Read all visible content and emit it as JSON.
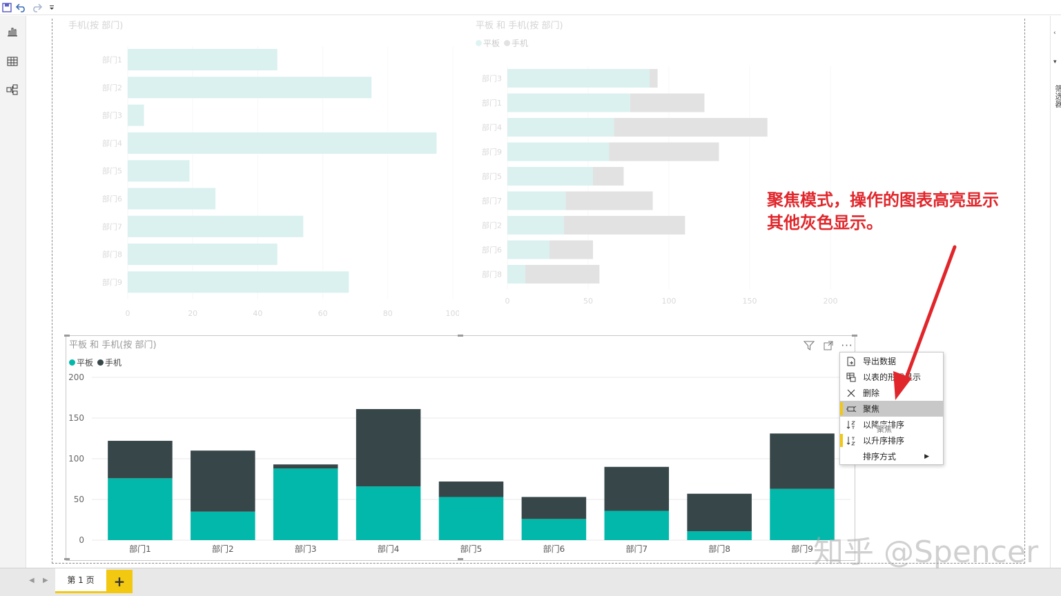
{
  "toolbar": {
    "icons": [
      "save-icon",
      "undo-icon",
      "redo-icon",
      "customize-dropdown-icon"
    ]
  },
  "left_rail": {
    "icons": [
      "report-view-icon",
      "data-view-icon",
      "relationship-view-icon"
    ]
  },
  "right_pane": {
    "label": "筛选器"
  },
  "page_tabs": {
    "current": "第 1 页",
    "add_label": "+"
  },
  "colors": {
    "teal": "#01b8aa",
    "dark": "#374649",
    "accent": "#f2c811",
    "annotation": "#e0262b"
  },
  "annotation": {
    "line1": "聚焦模式，操作的图表高亮显示",
    "line2": "其他灰色显示。"
  },
  "watermark": "知乎 @Spencer",
  "focused_visual": {
    "title": "平板 和 手机(按 部门)"
  },
  "context_menu": {
    "items": [
      {
        "label": "导出数据",
        "icon": "export-data-icon"
      },
      {
        "label": "以表的形式显示",
        "icon": "show-as-table-icon"
      },
      {
        "label": "删除",
        "icon": "delete-icon"
      },
      {
        "label": "聚焦",
        "icon": "spotlight-icon"
      },
      {
        "label": "以降序排序",
        "icon": "sort-descending-icon"
      },
      {
        "label": "以升序排序",
        "icon": "sort-ascending-icon"
      },
      {
        "label": "排序方式",
        "icon": ""
      }
    ],
    "tooltip": "聚焦"
  },
  "chart_data": [
    {
      "type": "bar",
      "orientation": "horizontal",
      "title": "手机(按 部门)",
      "categories": [
        "部门1",
        "部门2",
        "部门3",
        "部门4",
        "部门5",
        "部门6",
        "部门7",
        "部门8",
        "部门9"
      ],
      "values": [
        46,
        75,
        5,
        95,
        19,
        27,
        54,
        46,
        68
      ],
      "xlim": [
        0,
        100
      ],
      "xticks": [
        "0",
        "20",
        "40",
        "60",
        "80",
        "100"
      ],
      "grid": true
    },
    {
      "type": "bar",
      "orientation": "horizontal",
      "stacked": true,
      "title": "平板 和 手机(按 部门)",
      "categories": [
        "部门3",
        "部门1",
        "部门4",
        "部门9",
        "部门5",
        "部门7",
        "部门2",
        "部门6",
        "部门8"
      ],
      "series": [
        {
          "name": "平板",
          "values": [
            88,
            76,
            66,
            63,
            53,
            36,
            35,
            26,
            11
          ]
        },
        {
          "name": "手机",
          "values": [
            5,
            46,
            95,
            68,
            19,
            54,
            75,
            27,
            46
          ]
        }
      ],
      "xlim": [
        0,
        200
      ],
      "xticks": [
        "0",
        "50",
        "100",
        "150",
        "200"
      ],
      "legend": "top-left",
      "grid": true
    },
    {
      "type": "bar",
      "orientation": "vertical",
      "stacked": true,
      "title": "平板 和 手机(按 部门)",
      "categories": [
        "部门1",
        "部门2",
        "部门3",
        "部门4",
        "部门5",
        "部门6",
        "部门7",
        "部门8",
        "部门9"
      ],
      "series": [
        {
          "name": "平板",
          "values": [
            76,
            35,
            88,
            66,
            53,
            26,
            36,
            11,
            63
          ]
        },
        {
          "name": "手机",
          "values": [
            46,
            75,
            5,
            95,
            19,
            27,
            54,
            46,
            68
          ]
        }
      ],
      "ylim": [
        0,
        200
      ],
      "yticks": [
        "0",
        "50",
        "100",
        "150",
        "200"
      ],
      "legend": "top-left",
      "grid": true
    }
  ]
}
